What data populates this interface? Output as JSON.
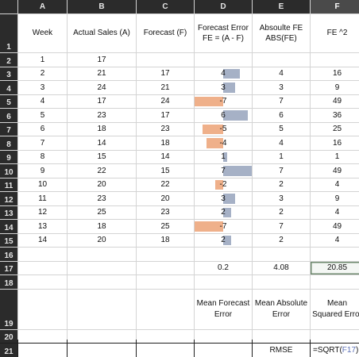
{
  "columns": [
    "A",
    "B",
    "C",
    "D",
    "E",
    "F"
  ],
  "selected_column": "F",
  "headers": {
    "week": "Week",
    "actual": "Actual Sales (A)",
    "forecast": "Forecast (F)",
    "error": "Forecast Error FE = (A - F)",
    "abs": "Absoulte FE ABS(FE)",
    "sq": "FE ^2"
  },
  "rows": [
    {
      "week": "1",
      "actual": "17",
      "forecast": "",
      "fe": "",
      "abs": "",
      "sq": "",
      "fe_value": null
    },
    {
      "week": "2",
      "actual": "21",
      "forecast": "17",
      "fe": "4",
      "abs": "4",
      "sq": "16",
      "fe_value": 4
    },
    {
      "week": "3",
      "actual": "24",
      "forecast": "21",
      "fe": "3",
      "abs": "3",
      "sq": "9",
      "fe_value": 3
    },
    {
      "week": "4",
      "actual": "17",
      "forecast": "24",
      "fe": "-7",
      "abs": "7",
      "sq": "49",
      "fe_value": -7
    },
    {
      "week": "5",
      "actual": "23",
      "forecast": "17",
      "fe": "6",
      "abs": "6",
      "sq": "36",
      "fe_value": 6
    },
    {
      "week": "6",
      "actual": "18",
      "forecast": "23",
      "fe": "-5",
      "abs": "5",
      "sq": "25",
      "fe_value": -5
    },
    {
      "week": "7",
      "actual": "14",
      "forecast": "18",
      "fe": "-4",
      "abs": "4",
      "sq": "16",
      "fe_value": -4
    },
    {
      "week": "8",
      "actual": "15",
      "forecast": "14",
      "fe": "1",
      "abs": "1",
      "sq": "1",
      "fe_value": 1
    },
    {
      "week": "9",
      "actual": "22",
      "forecast": "15",
      "fe": "7",
      "abs": "7",
      "sq": "49",
      "fe_value": 7
    },
    {
      "week": "10",
      "actual": "20",
      "forecast": "22",
      "fe": "-2",
      "abs": "2",
      "sq": "4",
      "fe_value": -2
    },
    {
      "week": "11",
      "actual": "23",
      "forecast": "20",
      "fe": "3",
      "abs": "3",
      "sq": "9",
      "fe_value": 3
    },
    {
      "week": "12",
      "actual": "25",
      "forecast": "23",
      "fe": "2",
      "abs": "2",
      "sq": "4",
      "fe_value": 2
    },
    {
      "week": "13",
      "actual": "18",
      "forecast": "25",
      "fe": "-7",
      "abs": "7",
      "sq": "49",
      "fe_value": -7
    },
    {
      "week": "14",
      "actual": "20",
      "forecast": "18",
      "fe": "2",
      "abs": "2",
      "sq": "4",
      "fe_value": 2
    }
  ],
  "summary": {
    "mean_fe": "0.2",
    "mean_abs": "4.08",
    "mean_sq": "20.85"
  },
  "labels": {
    "mean_fe": "Mean Forecast Error",
    "mean_abs": "Mean Absolute Error",
    "mean_sq": "Mean Squared Error",
    "rmse": "RMSE"
  },
  "formula": {
    "prefix": "=SQRT(",
    "ref": "F17",
    "suffix": ")"
  },
  "bar_scale_max": 7,
  "colors": {
    "positive_bar": "#a6b1c6",
    "negative_bar": "#efb08a",
    "header_bg": "#2b2b2b"
  }
}
